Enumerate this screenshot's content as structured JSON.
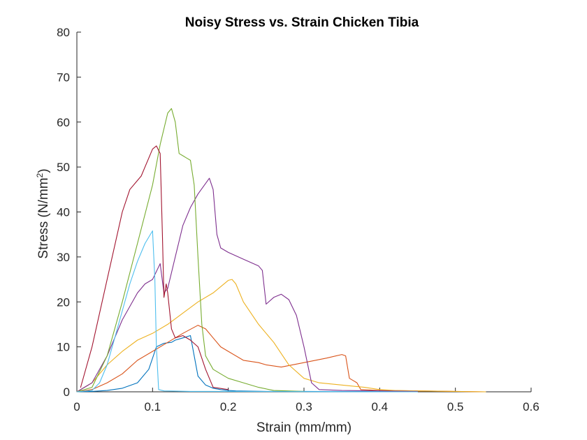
{
  "chart_data": {
    "type": "line",
    "title": "Noisy Stress vs. Strain Chicken Tibia",
    "xlabel": "Strain (mm/mm)",
    "ylabel_main": "Stress (N/mm",
    "ylabel_sup": "2",
    "ylabel_close": ")",
    "xlim": [
      0,
      0.6
    ],
    "ylim": [
      0,
      80
    ],
    "xticks": [
      0,
      0.1,
      0.2,
      0.3,
      0.4,
      0.5,
      0.6
    ],
    "xtick_labels": [
      "0",
      "0.1",
      "0.2",
      "0.3",
      "0.4",
      "0.5",
      "0.6"
    ],
    "yticks": [
      0,
      10,
      20,
      30,
      40,
      50,
      60,
      70,
      80
    ],
    "ytick_labels": [
      "0",
      "10",
      "20",
      "30",
      "40",
      "50",
      "60",
      "70",
      "80"
    ],
    "grid": false,
    "series": [
      {
        "name": "series-1",
        "color": "#0072BD",
        "x": [
          0.0,
          0.02,
          0.04,
          0.06,
          0.08,
          0.095,
          0.105,
          0.115,
          0.125,
          0.13,
          0.14,
          0.15,
          0.155,
          0.16,
          0.17,
          0.18,
          0.19,
          0.2,
          0.21,
          0.25,
          0.3,
          0.35,
          0.4,
          0.45
        ],
        "y": [
          0.0,
          0.1,
          0.3,
          0.8,
          2.0,
          5.0,
          10.0,
          10.8,
          11.0,
          11.5,
          12.0,
          12.5,
          8.0,
          3.5,
          1.5,
          0.8,
          0.5,
          0.3,
          0.2,
          0.1,
          0.1,
          0.05,
          0.05,
          0.05
        ]
      },
      {
        "name": "series-2",
        "color": "#D95319",
        "x": [
          0.0,
          0.02,
          0.04,
          0.06,
          0.08,
          0.1,
          0.12,
          0.14,
          0.16,
          0.17,
          0.18,
          0.19,
          0.2,
          0.22,
          0.24,
          0.25,
          0.27,
          0.3,
          0.33,
          0.35,
          0.355,
          0.36,
          0.37,
          0.375,
          0.4,
          0.45,
          0.5,
          0.54
        ],
        "y": [
          0.0,
          0.5,
          2.0,
          4.0,
          7.0,
          9.0,
          11.0,
          13.0,
          14.8,
          14.0,
          12.0,
          10.0,
          9.0,
          7.0,
          6.5,
          6.0,
          5.5,
          6.5,
          7.5,
          8.3,
          8.0,
          3.0,
          2.0,
          0.5,
          0.3,
          0.2,
          0.1,
          0.0
        ]
      },
      {
        "name": "series-3",
        "color": "#EDB120",
        "x": [
          0.0,
          0.02,
          0.04,
          0.06,
          0.08,
          0.1,
          0.12,
          0.14,
          0.16,
          0.18,
          0.2,
          0.205,
          0.21,
          0.22,
          0.24,
          0.26,
          0.28,
          0.3,
          0.32,
          0.35,
          0.38,
          0.4,
          0.42,
          0.45,
          0.5,
          0.54
        ],
        "y": [
          0.0,
          2.0,
          6.0,
          9.0,
          11.5,
          13.0,
          15.0,
          17.5,
          20.0,
          22.0,
          24.8,
          25.0,
          24.0,
          20.0,
          15.0,
          11.0,
          6.0,
          3.0,
          2.0,
          1.5,
          1.0,
          0.5,
          0.3,
          0.2,
          0.1,
          0.0
        ]
      },
      {
        "name": "series-4",
        "color": "#7E2F8E",
        "x": [
          0.0,
          0.02,
          0.04,
          0.06,
          0.08,
          0.09,
          0.1,
          0.11,
          0.115,
          0.12,
          0.13,
          0.14,
          0.15,
          0.16,
          0.175,
          0.18,
          0.185,
          0.19,
          0.2,
          0.22,
          0.24,
          0.245,
          0.25,
          0.26,
          0.27,
          0.28,
          0.29,
          0.3,
          0.31,
          0.32,
          0.35,
          0.4,
          0.45
        ],
        "y": [
          0.0,
          2.0,
          8.0,
          16.0,
          22.0,
          24.0,
          25.0,
          28.5,
          22.0,
          23.0,
          30.0,
          37.0,
          41.0,
          44.0,
          47.5,
          45.0,
          35.0,
          32.0,
          31.0,
          29.5,
          28.0,
          27.0,
          19.5,
          21.0,
          21.7,
          20.5,
          17.0,
          10.0,
          2.0,
          0.5,
          0.3,
          0.2,
          0.1
        ]
      },
      {
        "name": "series-5",
        "color": "#77AC30",
        "x": [
          0.0,
          0.02,
          0.04,
          0.06,
          0.08,
          0.1,
          0.11,
          0.12,
          0.125,
          0.13,
          0.135,
          0.14,
          0.145,
          0.15,
          0.155,
          0.16,
          0.165,
          0.17,
          0.18,
          0.19,
          0.2,
          0.22,
          0.24,
          0.26,
          0.3
        ],
        "y": [
          0.0,
          1.0,
          8.0,
          20.0,
          33.0,
          46.0,
          55.0,
          62.0,
          63.0,
          60.0,
          53.0,
          52.5,
          52.0,
          51.5,
          46.0,
          30.0,
          15.0,
          8.0,
          5.0,
          4.0,
          3.0,
          2.0,
          1.0,
          0.3,
          0.1
        ]
      },
      {
        "name": "series-6",
        "color": "#4DBEEE",
        "x": [
          0.0,
          0.02,
          0.03,
          0.04,
          0.05,
          0.06,
          0.07,
          0.08,
          0.09,
          0.1,
          0.103,
          0.105,
          0.108,
          0.115,
          0.15,
          0.2,
          0.3,
          0.45
        ],
        "y": [
          0.0,
          0.3,
          2.0,
          6.0,
          12.0,
          18.0,
          24.0,
          29.0,
          33.0,
          35.8,
          25.0,
          10.0,
          0.5,
          0.2,
          0.1,
          0.1,
          0.05,
          0.0
        ]
      },
      {
        "name": "series-7",
        "color": "#A2142F",
        "x": [
          0.005,
          0.02,
          0.04,
          0.06,
          0.07,
          0.08,
          0.085,
          0.09,
          0.095,
          0.1,
          0.105,
          0.11,
          0.113,
          0.115,
          0.118,
          0.12,
          0.125,
          0.13,
          0.14,
          0.15,
          0.16,
          0.17,
          0.18,
          0.2
        ],
        "y": [
          1.0,
          10.0,
          25.0,
          40.0,
          45.0,
          47.0,
          48.0,
          50.0,
          52.0,
          54.0,
          54.7,
          53.0,
          35.0,
          21.0,
          24.0,
          22.0,
          14.0,
          12.0,
          12.5,
          11.5,
          10.0,
          5.0,
          1.0,
          0.5
        ]
      }
    ]
  }
}
